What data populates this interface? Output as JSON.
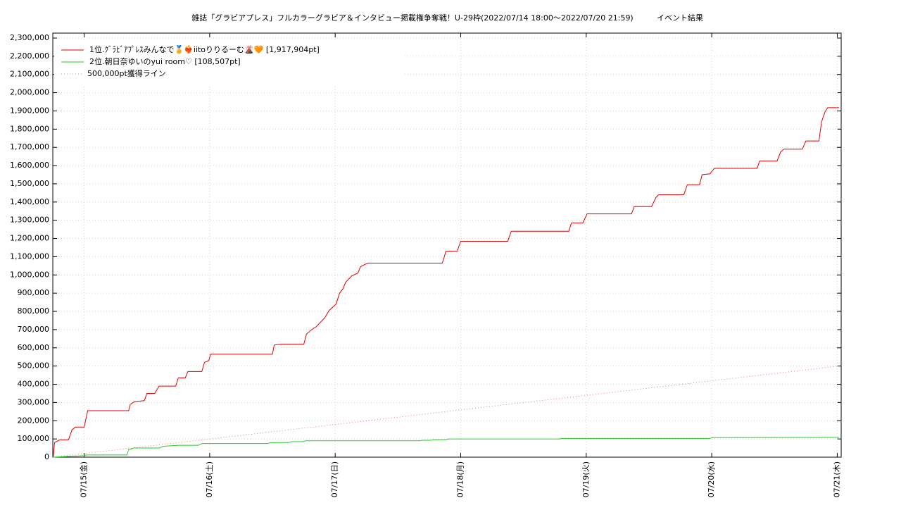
{
  "chart_data": {
    "type": "line",
    "title": "雑誌「グラビアプレス」フルカラーグラビア＆インタビュー掲載権争奪戦！U-29枠(2022/07/14 18:00～2022/07/20 21:59)",
    "subtitle": "イベント結果",
    "grid": true,
    "legend": "top-left",
    "xlim": [
      "2022-07-14T18:00",
      "2022-07-21T00:45"
    ],
    "xticks": [
      {
        "value": "2022-07-15T00:00",
        "label": "07/15(金)"
      },
      {
        "value": "2022-07-16T00:00",
        "label": "07/16(土)"
      },
      {
        "value": "2022-07-17T00:00",
        "label": "07/17(日)"
      },
      {
        "value": "2022-07-18T00:00",
        "label": "07/18(月)"
      },
      {
        "value": "2022-07-19T00:00",
        "label": "07/19(火)"
      },
      {
        "value": "2022-07-20T00:00",
        "label": "07/20(水)"
      },
      {
        "value": "2022-07-21T00:00",
        "label": "07/21(木)"
      }
    ],
    "ylim": [
      0,
      2327000
    ],
    "yticks": [
      0,
      {
        "value": 100000,
        "label": "100,000"
      },
      {
        "value": 200000,
        "label": "200,000"
      },
      {
        "value": 300000,
        "label": "300,000"
      },
      {
        "value": 400000,
        "label": "400,000"
      },
      {
        "value": 500000,
        "label": "500,000"
      },
      {
        "value": 600000,
        "label": "600,000"
      },
      {
        "value": 700000,
        "label": "700,000"
      },
      {
        "value": 800000,
        "label": "800,000"
      },
      {
        "value": 900000,
        "label": "900,000"
      },
      {
        "value": 1000000,
        "label": "1,000,000"
      },
      {
        "value": 1100000,
        "label": "1,100,000"
      },
      {
        "value": 1200000,
        "label": "1,200,000"
      },
      {
        "value": 1300000,
        "label": "1,300,000"
      },
      {
        "value": 1400000,
        "label": "1,400,000"
      },
      {
        "value": 1500000,
        "label": "1,500,000"
      },
      {
        "value": 1600000,
        "label": "1,600,000"
      },
      {
        "value": 1700000,
        "label": "1,700,000"
      },
      {
        "value": 1800000,
        "label": "1,800,000"
      },
      {
        "value": 1900000,
        "label": "1,900,000"
      },
      {
        "value": 2000000,
        "label": "2,000,000"
      },
      {
        "value": 2100000,
        "label": "2,100,000"
      },
      {
        "value": 2200000,
        "label": "2,200,000"
      },
      {
        "value": 2300000,
        "label": "2,300,000"
      }
    ],
    "series": [
      {
        "name": "1位.ｸﾞﾗﾋﾞｱﾌﾟﾚｽみんなで🏅❤️‍🔥iitoりりるーむ🌋🧡 [1,917,904pt]",
        "color": "#e00000",
        "style": "solid",
        "x": [
          "2022-07-14T18:05",
          "2022-07-14T18:20",
          "2022-07-14T19:20",
          "2022-07-14T21:00",
          "2022-07-14T21:40",
          "2022-07-14T22:20",
          "2022-07-15T00:00",
          "2022-07-15T00:20",
          "2022-07-15T00:40",
          "2022-07-15T08:30",
          "2022-07-15T08:50",
          "2022-07-15T09:40",
          "2022-07-15T11:30",
          "2022-07-15T12:00",
          "2022-07-15T13:30",
          "2022-07-15T14:20",
          "2022-07-15T17:30",
          "2022-07-15T18:00",
          "2022-07-15T19:20",
          "2022-07-15T19:50",
          "2022-07-15T22:30",
          "2022-07-15T23:00",
          "2022-07-15T23:50",
          "2022-07-16T00:10",
          "2022-07-16T12:00",
          "2022-07-16T12:20",
          "2022-07-16T13:20",
          "2022-07-16T18:00",
          "2022-07-16T18:30",
          "2022-07-16T19:30",
          "2022-07-16T20:20",
          "2022-07-16T21:10",
          "2022-07-16T22:00",
          "2022-07-16T22:50",
          "2022-07-17T00:10",
          "2022-07-17T00:50",
          "2022-07-17T01:30",
          "2022-07-17T02:00",
          "2022-07-17T03:10",
          "2022-07-17T04:20",
          "2022-07-17T04:50",
          "2022-07-17T05:50",
          "2022-07-17T06:20",
          "2022-07-17T20:30",
          "2022-07-17T21:10",
          "2022-07-17T23:20",
          "2022-07-18T00:00",
          "2022-07-18T09:00",
          "2022-07-18T09:40",
          "2022-07-18T20:40",
          "2022-07-18T21:10",
          "2022-07-18T23:20",
          "2022-07-19T00:10",
          "2022-07-19T08:40",
          "2022-07-19T09:10",
          "2022-07-19T12:30",
          "2022-07-19T13:20",
          "2022-07-19T13:50",
          "2022-07-19T18:40",
          "2022-07-19T19:20",
          "2022-07-19T21:40",
          "2022-07-19T22:10",
          "2022-07-19T23:40",
          "2022-07-20T00:30",
          "2022-07-20T08:40",
          "2022-07-20T09:10",
          "2022-07-20T12:30",
          "2022-07-20T13:10",
          "2022-07-20T13:50",
          "2022-07-20T17:20",
          "2022-07-20T18:00",
          "2022-07-20T20:30",
          "2022-07-20T21:00",
          "2022-07-20T21:40",
          "2022-07-20T22:10",
          "2022-07-21T00:20"
        ],
        "values": [
          0,
          80000,
          95000,
          95000,
          150000,
          165000,
          165000,
          210000,
          255000,
          255000,
          290000,
          305000,
          310000,
          350000,
          350000,
          390000,
          390000,
          435000,
          435000,
          470000,
          470000,
          520000,
          530000,
          565000,
          565000,
          615000,
          620000,
          620000,
          675000,
          700000,
          715000,
          740000,
          765000,
          805000,
          840000,
          900000,
          925000,
          960000,
          995000,
          1010000,
          1045000,
          1060000,
          1065000,
          1065000,
          1130000,
          1130000,
          1185000,
          1185000,
          1240000,
          1240000,
          1285000,
          1285000,
          1335000,
          1335000,
          1375000,
          1375000,
          1425000,
          1440000,
          1440000,
          1495000,
          1495000,
          1550000,
          1555000,
          1585000,
          1585000,
          1625000,
          1625000,
          1675000,
          1690000,
          1690000,
          1735000,
          1735000,
          1840000,
          1895000,
          1917904,
          1917904
        ]
      },
      {
        "name": "2位.朝日奈ゆいのyui room♡ [108,507pt]",
        "color": "#22cc22",
        "style": "solid",
        "x": [
          "2022-07-14T18:05",
          "2022-07-15T00:00",
          "2022-07-15T00:20",
          "2022-07-15T08:10",
          "2022-07-15T08:30",
          "2022-07-15T09:30",
          "2022-07-15T14:20",
          "2022-07-15T15:10",
          "2022-07-15T18:00",
          "2022-07-15T21:50",
          "2022-07-15T22:30",
          "2022-07-16T11:00",
          "2022-07-16T11:50",
          "2022-07-16T15:00",
          "2022-07-16T15:40",
          "2022-07-16T17:50",
          "2022-07-16T18:20",
          "2022-07-17T16:10",
          "2022-07-17T16:40",
          "2022-07-17T18:20",
          "2022-07-17T18:50",
          "2022-07-17T21:10",
          "2022-07-17T21:40",
          "2022-07-18T19:00",
          "2022-07-18T19:30",
          "2022-07-19T23:40",
          "2022-07-20T00:10",
          "2022-07-21T00:20"
        ],
        "values": [
          0,
          8000,
          12000,
          12000,
          40000,
          50000,
          50000,
          60000,
          65000,
          65000,
          75000,
          75000,
          80000,
          80000,
          85000,
          85000,
          90000,
          90000,
          93000,
          93000,
          96000,
          96000,
          100000,
          100000,
          103000,
          103000,
          107000,
          108507
        ]
      },
      {
        "name": "500,000pt獲得ライン",
        "color": "#e08080",
        "style": "dotted",
        "x": [
          "2022-07-14T18:00",
          "2022-07-21T00:20"
        ],
        "values": [
          0,
          500000
        ]
      }
    ]
  }
}
